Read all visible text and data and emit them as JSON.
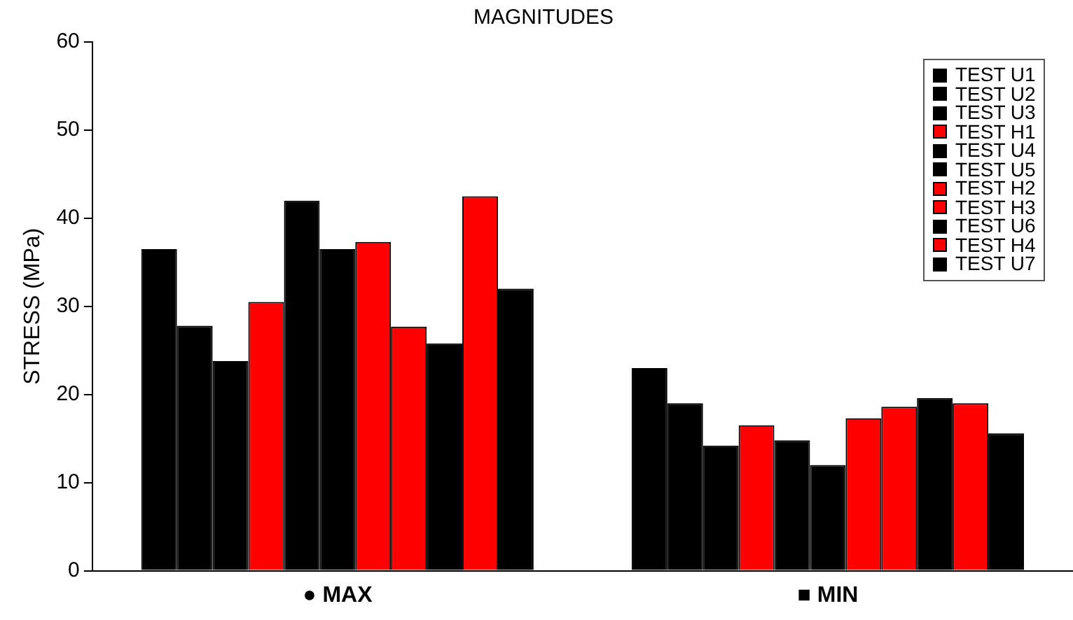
{
  "chart_data": {
    "type": "bar",
    "title": "MAGNITUDES",
    "ylabel": "STRESS (MPa)",
    "categories": [
      "● MAX",
      "■ MIN"
    ],
    "series": [
      {
        "name": "TEST U1",
        "color": "#000000",
        "values": [
          36.5,
          23
        ]
      },
      {
        "name": "TEST U2",
        "color": "#000000",
        "values": [
          27.8,
          19
        ]
      },
      {
        "name": "TEST U3",
        "color": "#000000",
        "values": [
          23.8,
          14.2
        ]
      },
      {
        "name": "TEST H1",
        "color": "#ff0000",
        "values": [
          30.5,
          16.5
        ]
      },
      {
        "name": "TEST U4",
        "color": "#000000",
        "values": [
          42,
          14.8
        ]
      },
      {
        "name": "TEST U5",
        "color": "#000000",
        "values": [
          36.5,
          12
        ]
      },
      {
        "name": "TEST H2",
        "color": "#ff0000",
        "values": [
          37.3,
          17.3
        ]
      },
      {
        "name": "TEST H3",
        "color": "#ff0000",
        "values": [
          27.7,
          18.6
        ]
      },
      {
        "name": "TEST U6",
        "color": "#000000",
        "values": [
          25.8,
          19.6
        ]
      },
      {
        "name": "TEST H4",
        "color": "#ff0000",
        "values": [
          42.5,
          19
        ]
      },
      {
        "name": "TEST U7",
        "color": "#000000",
        "values": [
          32,
          15.6
        ]
      }
    ],
    "ylim": [
      0,
      60
    ],
    "yticks": [
      0,
      10,
      20,
      30,
      40,
      50,
      60
    ],
    "grid": false,
    "legend": "top right"
  }
}
